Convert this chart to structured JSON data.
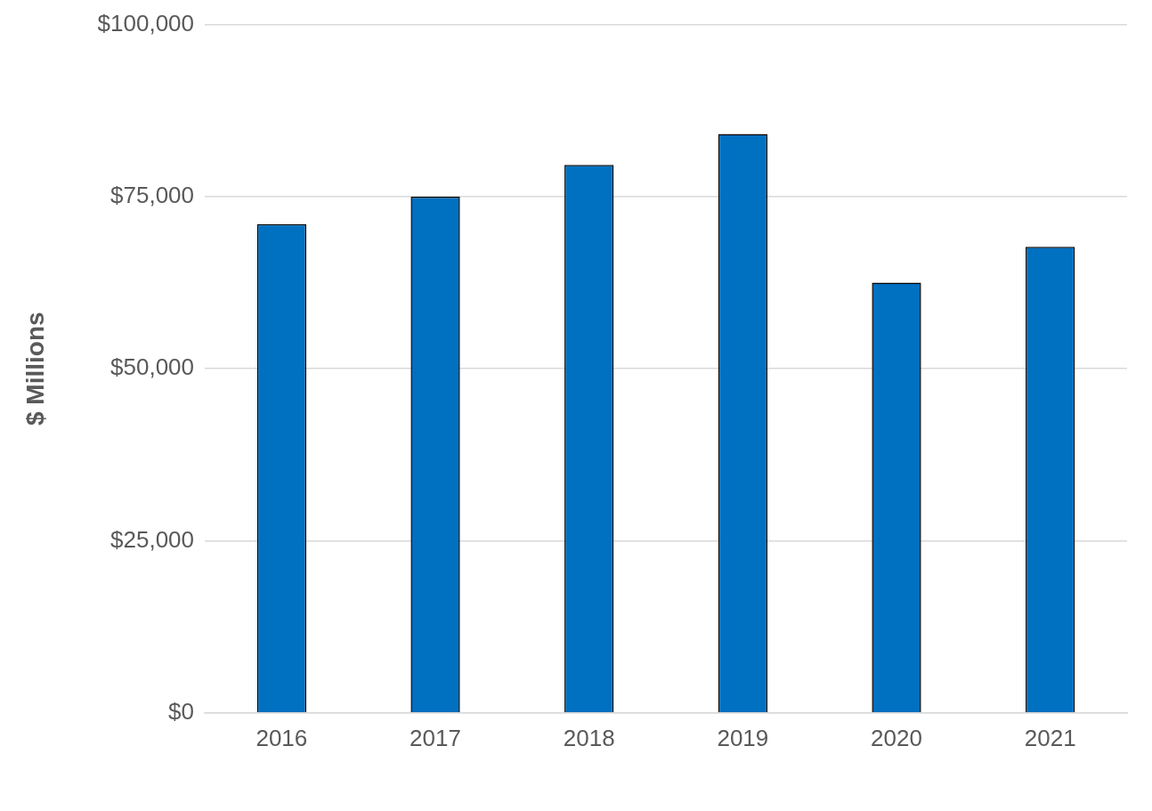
{
  "chart_data": {
    "type": "bar",
    "ylabel": "$ Millions",
    "categories": [
      "2016",
      "2017",
      "2018",
      "2019",
      "2020",
      "2021"
    ],
    "values": [
      71000,
      75000,
      79600,
      84100,
      62500,
      67700
    ],
    "color": "#0070c0",
    "ylim": [
      0,
      100000
    ],
    "yticks": [
      {
        "value": 0,
        "label": "$0"
      },
      {
        "value": 25000,
        "label": "$25,000"
      },
      {
        "value": 50000,
        "label": "$50,000"
      },
      {
        "value": 75000,
        "label": "$75,000"
      },
      {
        "value": 100000,
        "label": "$100,000"
      }
    ],
    "grid": "y",
    "legend": false
  }
}
